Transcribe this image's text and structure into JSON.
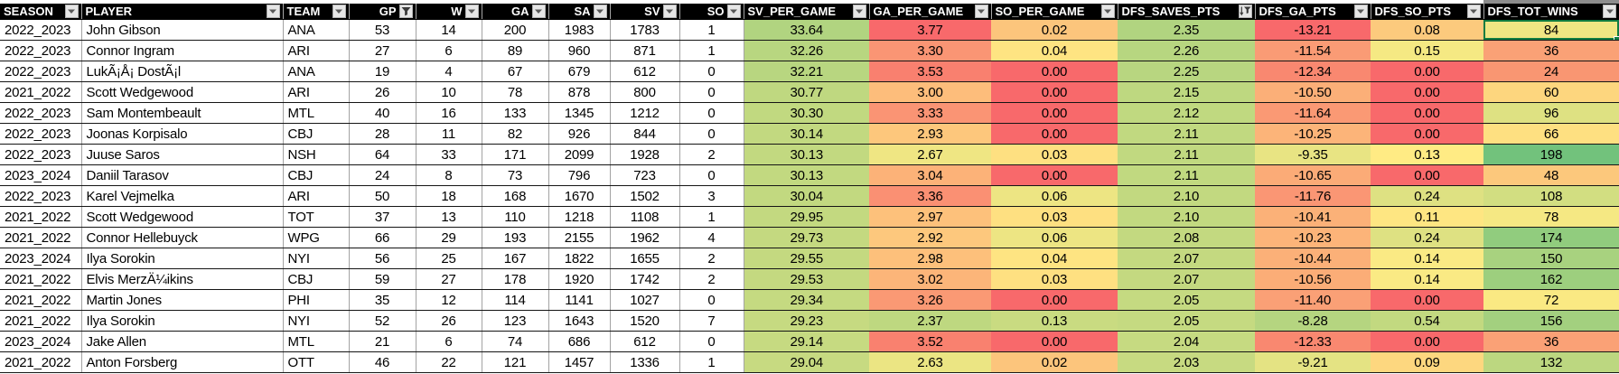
{
  "sheet": {
    "selection": {
      "row": 0,
      "col": 15,
      "value": "84",
      "border_color": "#107C41"
    },
    "colors": {
      "header_bg": "#000000",
      "header_fg": "#FFFFFF",
      "scale_red": "#F8696B",
      "scale_yellow": "#FFEB84",
      "scale_green": "#63BE7B",
      "row_line": "#151515",
      "column_line": "#A3A3A3",
      "selection_green": "#107C41"
    },
    "table": {
      "columns": [
        {
          "key": "season",
          "label": "SEASON",
          "filter": "dropdown",
          "header_align": "between"
        },
        {
          "key": "player",
          "label": "PLAYER",
          "filter": "dropdown",
          "header_align": "between"
        },
        {
          "key": "team",
          "label": "TEAM",
          "filter": "dropdown",
          "header_align": "between"
        },
        {
          "key": "gp",
          "label": "GP",
          "filter": "filtered",
          "header_align": "end"
        },
        {
          "key": "w",
          "label": "W",
          "filter": "dropdown",
          "header_align": "end"
        },
        {
          "key": "ga",
          "label": "GA",
          "filter": "dropdown",
          "header_align": "end"
        },
        {
          "key": "sa",
          "label": "SA",
          "filter": "dropdown",
          "header_align": "end"
        },
        {
          "key": "sv",
          "label": "SV",
          "filter": "dropdown",
          "header_align": "end"
        },
        {
          "key": "so",
          "label": "SO",
          "filter": "dropdown",
          "header_align": "end"
        },
        {
          "key": "sv_per_game",
          "label": "SV_PER_GAME",
          "filter": "dropdown",
          "header_align": "between"
        },
        {
          "key": "ga_per_game",
          "label": "GA_PER_GAME",
          "filter": "dropdown",
          "header_align": "between"
        },
        {
          "key": "so_per_game",
          "label": "SO_PER_GAME",
          "filter": "dropdown",
          "header_align": "between"
        },
        {
          "key": "dfs_saves_pts",
          "label": "DFS_SAVES_PTS",
          "filter": "sorted-desc",
          "header_align": "between"
        },
        {
          "key": "dfs_ga_pts",
          "label": "DFS_GA_PTS",
          "filter": "dropdown",
          "header_align": "between"
        },
        {
          "key": "dfs_so_pts",
          "label": "DFS_SO_PTS",
          "filter": "dropdown",
          "header_align": "between"
        },
        {
          "key": "dfs_tot_wins",
          "label": "DFS_TOT_WINS",
          "filter": "dropdown",
          "header_align": "between"
        }
      ],
      "rows": [
        {
          "cells": [
            "2022_2023",
            "John Gibson",
            "ANA",
            "53",
            "14",
            "200",
            "1983",
            "1783",
            "1",
            "33.64",
            "3.77",
            "0.02",
            "2.35",
            "-13.21",
            "0.08",
            "84"
          ],
          "metric_colors": [
            "#B1D480",
            "#F8696B",
            "#FCC57C",
            "#B1D480",
            "#F8696B",
            "#FCCA7D",
            "#EFE683"
          ]
        },
        {
          "cells": [
            "2022_2023",
            "Connor Ingram",
            "ARI",
            "27",
            "6",
            "89",
            "960",
            "871",
            "1",
            "32.26",
            "3.30",
            "0.04",
            "2.26",
            "-11.54",
            "0.15",
            "36"
          ],
          "metric_colors": [
            "#B8D680",
            "#FA9574",
            "#FEE482",
            "#B7D680",
            "#FA9B75",
            "#F5E983",
            "#FAA176"
          ]
        },
        {
          "cells": [
            "2022_2023",
            "LukÃ¡Å¡ DostÃ¡l",
            "ANA",
            "19",
            "4",
            "67",
            "679",
            "612",
            "0",
            "32.21",
            "3.53",
            "0.00",
            "2.25",
            "-12.34",
            "0.00",
            "24"
          ],
          "metric_colors": [
            "#B8D680",
            "#F9806F",
            "#F8696B",
            "#B8D680",
            "#F98870",
            "#F8696B",
            "#F99672"
          ]
        },
        {
          "cells": [
            "2021_2022",
            "Scott Wedgewood",
            "ARI",
            "26",
            "10",
            "78",
            "878",
            "800",
            "0",
            "30.77",
            "3.00",
            "0.00",
            "2.15",
            "-10.50",
            "0.00",
            "60"
          ],
          "metric_colors": [
            "#BFD880",
            "#FDBD7B",
            "#F8696B",
            "#BED880",
            "#FBAF78",
            "#F8696B",
            "#FDD67E"
          ]
        },
        {
          "cells": [
            "2022_2023",
            "Sam Montembeault",
            "MTL",
            "40",
            "16",
            "133",
            "1345",
            "1212",
            "0",
            "30.30",
            "3.33",
            "0.00",
            "2.12",
            "-11.64",
            "0.00",
            "96"
          ],
          "metric_colors": [
            "#C1D980",
            "#FA9474",
            "#F8696B",
            "#C0D980",
            "#FA9974",
            "#F8696B",
            "#DEE182"
          ]
        },
        {
          "cells": [
            "2022_2023",
            "Joonas Korpisalo",
            "CBJ",
            "28",
            "11",
            "82",
            "926",
            "844",
            "0",
            "30.14",
            "2.93",
            "0.00",
            "2.11",
            "-10.25",
            "0.00",
            "66"
          ],
          "metric_colors": [
            "#C2D980",
            "#FDC77C",
            "#F8696B",
            "#C1D980",
            "#FCB479",
            "#F8696B",
            "#FEE081"
          ]
        },
        {
          "cells": [
            "2022_2023",
            "Juuse Saros",
            "NSH",
            "64",
            "33",
            "171",
            "2099",
            "1928",
            "2",
            "30.13",
            "2.67",
            "0.03",
            "2.11",
            "-9.35",
            "0.13",
            "198"
          ],
          "metric_colors": [
            "#C2D980",
            "#EFE683",
            "#FEE081",
            "#C1D980",
            "#E8E483",
            "#FFEB84",
            "#72C27C"
          ]
        },
        {
          "cells": [
            "2023_2024",
            "Daniil Tarasov",
            "CBJ",
            "24",
            "8",
            "73",
            "796",
            "723",
            "0",
            "30.13",
            "3.04",
            "0.00",
            "2.11",
            "-10.65",
            "0.00",
            "48"
          ],
          "metric_colors": [
            "#C2D980",
            "#FCB278",
            "#F8696B",
            "#C1D980",
            "#FBAB77",
            "#F8696B",
            "#FCC87C"
          ]
        },
        {
          "cells": [
            "2022_2023",
            "Karel Vejmelka",
            "ARI",
            "50",
            "18",
            "168",
            "1670",
            "1502",
            "3",
            "30.04",
            "3.36",
            "0.06",
            "2.10",
            "-11.76",
            "0.24",
            "108"
          ],
          "metric_colors": [
            "#C2D980",
            "#FA9073",
            "#EDE583",
            "#C2D980",
            "#FA9674",
            "#DEE182",
            "#D2DE81"
          ]
        },
        {
          "cells": [
            "2021_2022",
            "Scott Wedgewood",
            "TOT",
            "37",
            "13",
            "110",
            "1218",
            "1108",
            "1",
            "29.95",
            "2.97",
            "0.03",
            "2.10",
            "-10.41",
            "0.11",
            "78"
          ],
          "metric_colors": [
            "#C3D980",
            "#FDC17B",
            "#FEE081",
            "#C2D980",
            "#FBB178",
            "#FEE682",
            "#F5E883"
          ]
        },
        {
          "cells": [
            "2021_2022",
            "Connor Hellebuyck",
            "WPG",
            "66",
            "29",
            "193",
            "2155",
            "1962",
            "4",
            "29.73",
            "2.92",
            "0.06",
            "2.08",
            "-10.23",
            "0.24",
            "174"
          ],
          "metric_colors": [
            "#C4D980",
            "#FDC87D",
            "#EDE583",
            "#C3D980",
            "#FCB479",
            "#DEE182",
            "#91CC7E"
          ]
        },
        {
          "cells": [
            "2023_2024",
            "Ilya Sorokin",
            "NYI",
            "56",
            "25",
            "167",
            "1822",
            "1655",
            "2",
            "29.55",
            "2.98",
            "0.04",
            "2.07",
            "-10.44",
            "0.14",
            "150"
          ],
          "metric_colors": [
            "#C4D980",
            "#FDC07B",
            "#FEE482",
            "#C4D980",
            "#FBB078",
            "#FAEA84",
            "#A8D27F"
          ]
        },
        {
          "cells": [
            "2021_2022",
            "Elvis MerzÄ¼ikins",
            "CBJ",
            "59",
            "27",
            "178",
            "1920",
            "1742",
            "2",
            "29.53",
            "3.02",
            "0.03",
            "2.07",
            "-10.56",
            "0.14",
            "162"
          ],
          "metric_colors": [
            "#C4D980",
            "#FCB579",
            "#FEE081",
            "#C4D980",
            "#FBAD77",
            "#FAEA84",
            "#9DCF7E"
          ]
        },
        {
          "cells": [
            "2021_2022",
            "Martin Jones",
            "PHI",
            "35",
            "12",
            "114",
            "1141",
            "1027",
            "0",
            "29.34",
            "3.26",
            "0.00",
            "2.05",
            "-11.40",
            "0.00",
            "72"
          ],
          "metric_colors": [
            "#C5DA81",
            "#FA9974",
            "#F8696B",
            "#C5DA81",
            "#FAA076",
            "#F8696B",
            "#FAE983"
          ]
        },
        {
          "cells": [
            "2021_2022",
            "Ilya Sorokin",
            "NYI",
            "52",
            "26",
            "123",
            "1643",
            "1520",
            "7",
            "29.23",
            "2.37",
            "0.13",
            "2.05",
            "-8.28",
            "0.54",
            "156"
          ],
          "metric_colors": [
            "#C6DA81",
            "#BED880",
            "#C9DB81",
            "#C5DA81",
            "#B5D580",
            "#C2D980",
            "#A3D07F"
          ]
        },
        {
          "cells": [
            "2023_2024",
            "Jake Allen",
            "MTL",
            "21",
            "6",
            "74",
            "686",
            "612",
            "0",
            "29.14",
            "3.52",
            "0.00",
            "2.04",
            "-12.33",
            "0.00",
            "36"
          ],
          "metric_colors": [
            "#C6DA81",
            "#F9816F",
            "#F8696B",
            "#C6DA81",
            "#F98870",
            "#F8696B",
            "#FAA176"
          ]
        },
        {
          "cells": [
            "2021_2022",
            "Anton Forsberg",
            "OTT",
            "46",
            "22",
            "121",
            "1457",
            "1336",
            "1",
            "29.04",
            "2.63",
            "0.02",
            "2.03",
            "-9.21",
            "0.09",
            "132"
          ],
          "metric_colors": [
            "#C7DA81",
            "#EBE583",
            "#FCC57C",
            "#C7DA81",
            "#E4E383",
            "#FDD77F",
            "#BCD780"
          ]
        }
      ]
    }
  }
}
